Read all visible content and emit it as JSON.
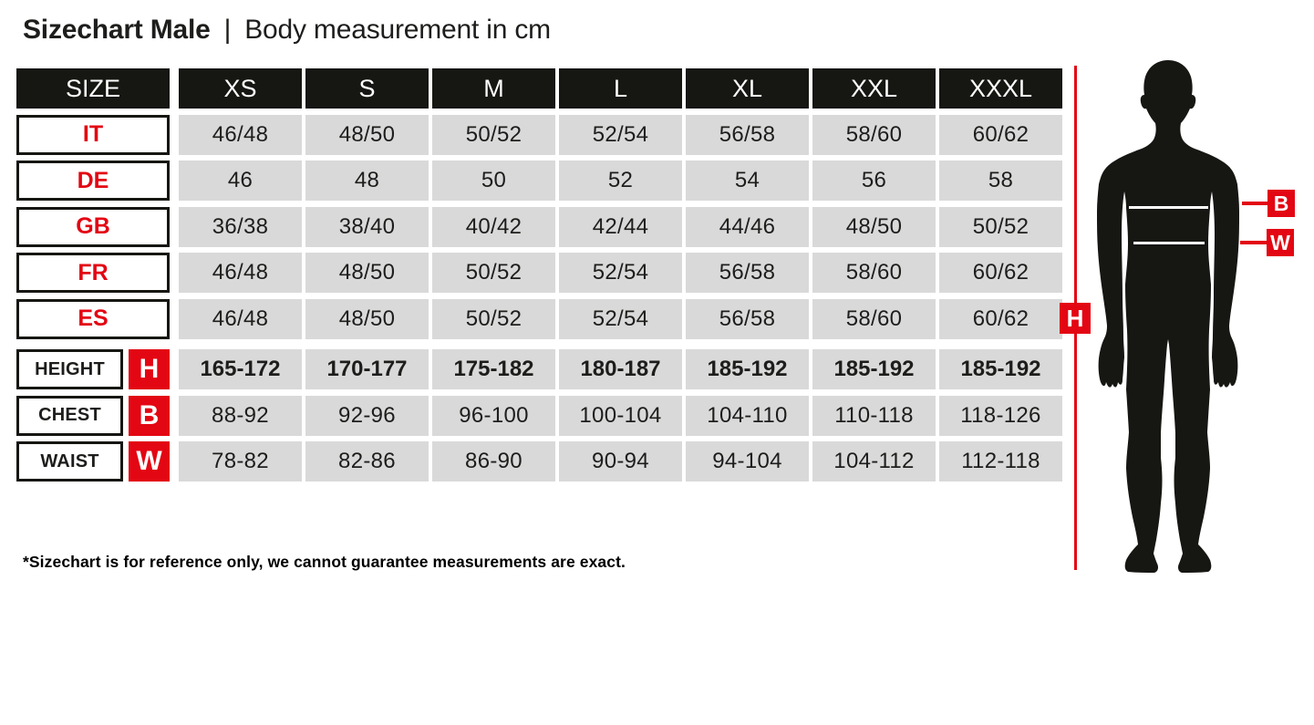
{
  "title": {
    "main": "Sizechart Male",
    "separator": "|",
    "subtitle": "Body measurement in cm"
  },
  "colors": {
    "accent_red": "#e30613",
    "header_black": "#161613",
    "cell_gray": "#d9d9d9",
    "text_dark": "#1d1d1b"
  },
  "table": {
    "header": [
      "SIZE",
      "XS",
      "S",
      "M",
      "L",
      "XL",
      "XXL",
      "XXXL"
    ],
    "country_rows": [
      {
        "label": "IT",
        "values": [
          "46/48",
          "48/50",
          "50/52",
          "52/54",
          "56/58",
          "58/60",
          "60/62"
        ]
      },
      {
        "label": "DE",
        "values": [
          "46",
          "48",
          "50",
          "52",
          "54",
          "56",
          "58"
        ]
      },
      {
        "label": "GB",
        "values": [
          "36/38",
          "38/40",
          "40/42",
          "42/44",
          "44/46",
          "48/50",
          "50/52"
        ]
      },
      {
        "label": "FR",
        "values": [
          "46/48",
          "48/50",
          "50/52",
          "52/54",
          "56/58",
          "58/60",
          "60/62"
        ]
      },
      {
        "label": "ES",
        "values": [
          "46/48",
          "48/50",
          "50/52",
          "52/54",
          "56/58",
          "58/60",
          "60/62"
        ]
      }
    ],
    "measure_rows": [
      {
        "label": "HEIGHT",
        "badge": "H",
        "bold": true,
        "values": [
          "165-172",
          "170-177",
          "175-182",
          "180-187",
          "185-192",
          "185-192",
          "185-192"
        ]
      },
      {
        "label": "CHEST",
        "badge": "B",
        "bold": false,
        "values": [
          "88-92",
          "92-96",
          "96-100",
          "100-104",
          "104-110",
          "110-118",
          "118-126"
        ]
      },
      {
        "label": "WAIST",
        "badge": "W",
        "bold": false,
        "values": [
          "78-82",
          "82-86",
          "86-90",
          "90-94",
          "94-104",
          "104-112",
          "112-118"
        ]
      }
    ]
  },
  "figure": {
    "height_label": "H",
    "chest_label": "B",
    "waist_label": "W"
  },
  "footnote": "*Sizechart is for reference only, we cannot guarantee measurements are exact.",
  "chart_data": {
    "type": "table",
    "title": "Sizechart Male | Body measurement in cm",
    "columns": [
      "SIZE",
      "XS",
      "S",
      "M",
      "L",
      "XL",
      "XXL",
      "XXXL"
    ],
    "rows": [
      [
        "IT",
        "46/48",
        "48/50",
        "50/52",
        "52/54",
        "56/58",
        "58/60",
        "60/62"
      ],
      [
        "DE",
        "46",
        "48",
        "50",
        "52",
        "54",
        "56",
        "58"
      ],
      [
        "GB",
        "36/38",
        "38/40",
        "40/42",
        "42/44",
        "44/46",
        "48/50",
        "50/52"
      ],
      [
        "FR",
        "46/48",
        "48/50",
        "50/52",
        "52/54",
        "56/58",
        "58/60",
        "60/62"
      ],
      [
        "ES",
        "46/48",
        "48/50",
        "50/52",
        "52/54",
        "56/58",
        "58/60",
        "60/62"
      ],
      [
        "HEIGHT (H)",
        "165-172",
        "170-177",
        "175-182",
        "180-187",
        "185-192",
        "185-192",
        "185-192"
      ],
      [
        "CHEST (B)",
        "88-92",
        "92-96",
        "96-100",
        "100-104",
        "104-110",
        "110-118",
        "118-126"
      ],
      [
        "WAIST (W)",
        "78-82",
        "82-86",
        "86-90",
        "90-94",
        "94-104",
        "104-112",
        "112-118"
      ]
    ],
    "annotations": [
      "H = height line on figure",
      "B = chest line on figure",
      "W = waist line on figure"
    ],
    "footnote": "*Sizechart is for reference only, we cannot guarantee measurements are exact."
  }
}
